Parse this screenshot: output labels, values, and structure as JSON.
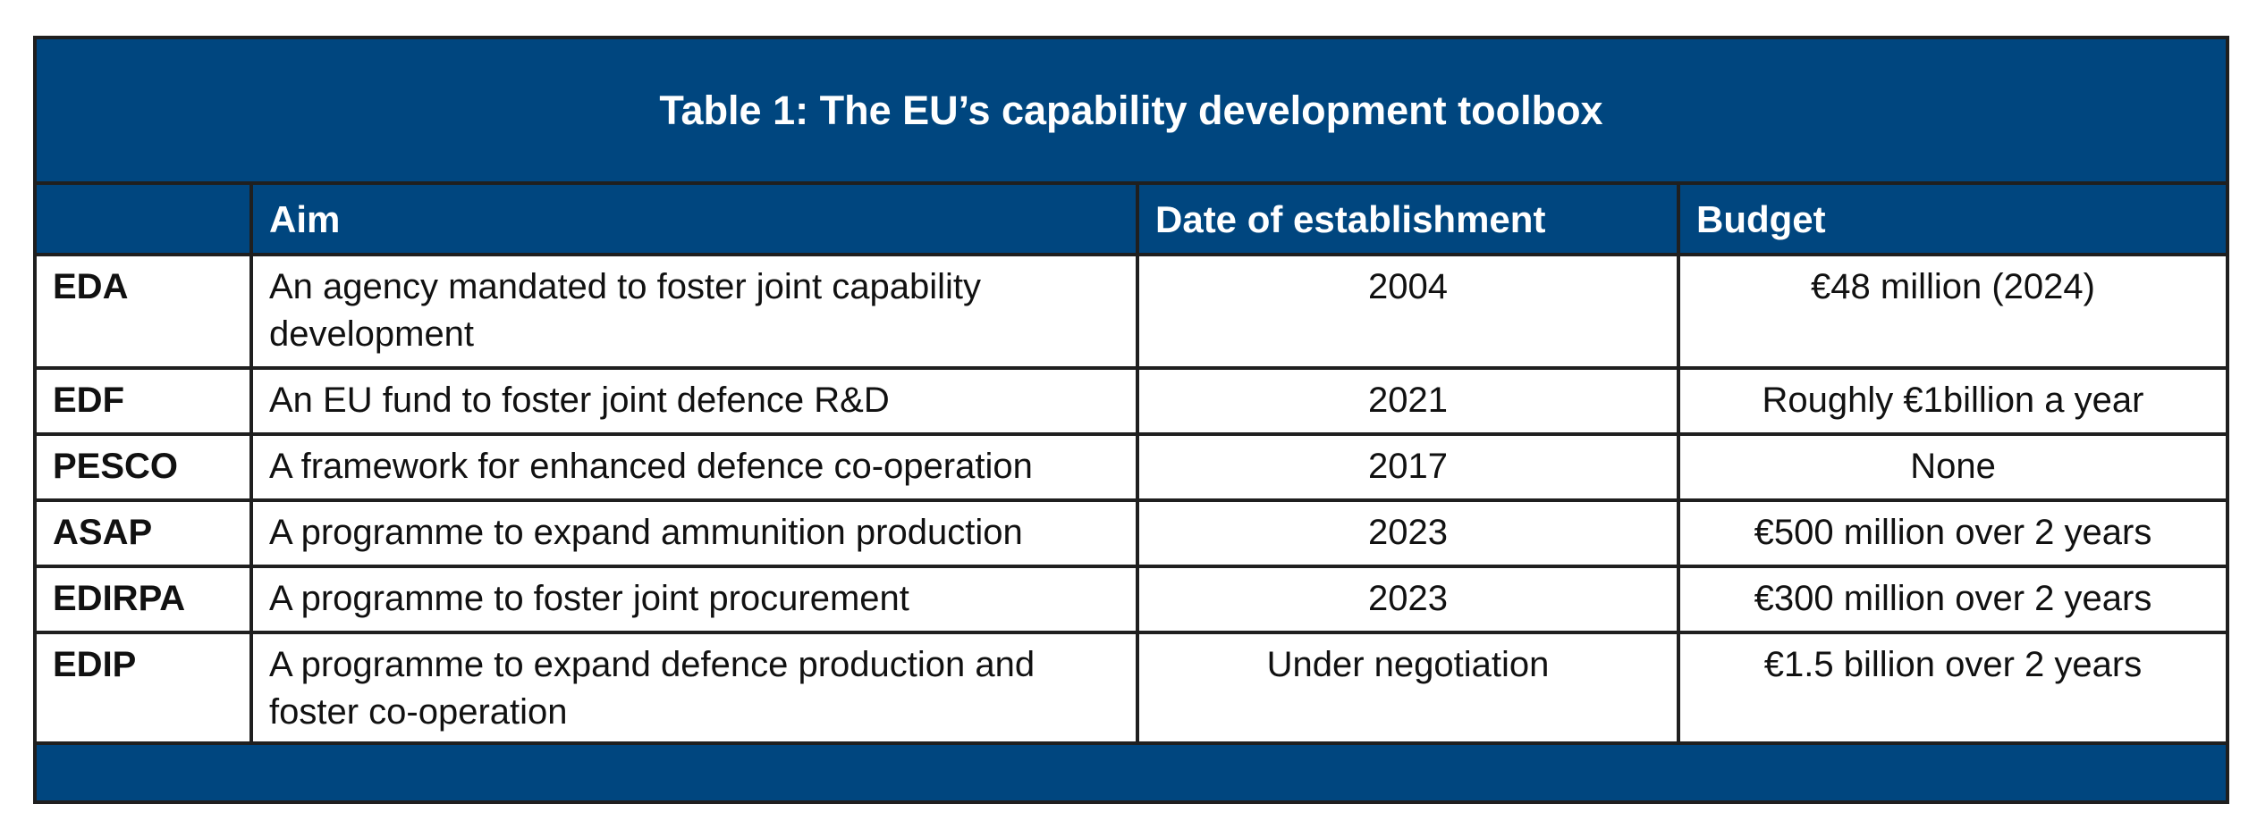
{
  "table": {
    "title": "Table 1: The EU’s capability development toolbox",
    "headers": [
      "",
      "Aim",
      "Date of establishment",
      "Budget"
    ],
    "rows": [
      {
        "name": "EDA",
        "aim": "An agency mandated to foster joint capability development",
        "date": "2004",
        "budget": "€48 million (2024)"
      },
      {
        "name": "EDF",
        "aim": "An EU fund to foster joint defence R&D",
        "date": "2021",
        "budget": "Roughly €1billion a year"
      },
      {
        "name": "PESCO",
        "aim": "A framework for enhanced defence co-operation",
        "date": "2017",
        "budget": "None"
      },
      {
        "name": "ASAP",
        "aim": "A programme to expand ammunition production",
        "date": "2023",
        "budget": "€500 million over 2 years"
      },
      {
        "name": "EDIRPA",
        "aim": "A programme to foster joint procurement",
        "date": "2023",
        "budget": "€300 million over 2 years"
      },
      {
        "name": "EDIP",
        "aim": "A programme to expand defence production and foster co-operation",
        "date": "Under negotiation",
        "budget": "€1.5 billion over 2 years"
      }
    ]
  },
  "colors": {
    "header_blue": "#00467f",
    "border": "#1f1f1f",
    "text": "#111111"
  }
}
